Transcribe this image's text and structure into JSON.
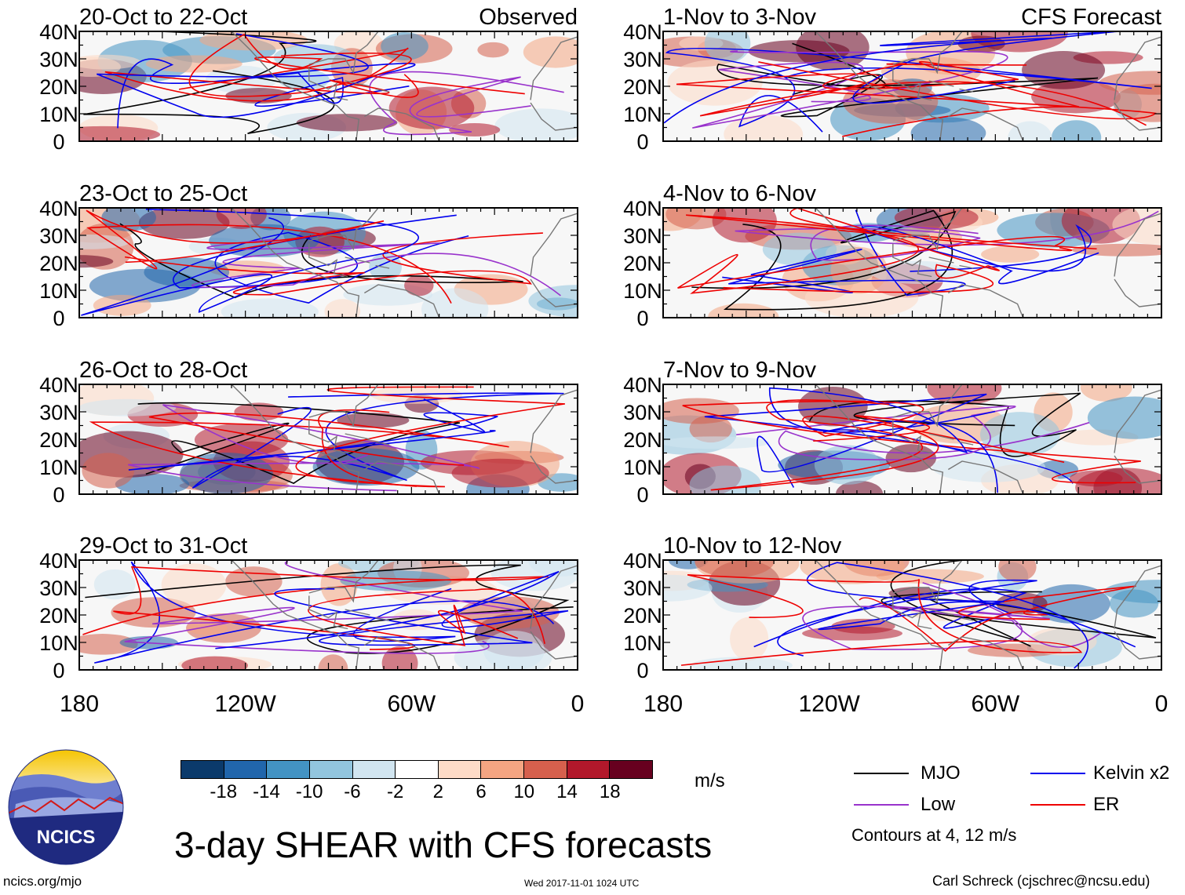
{
  "panels": {
    "left": [
      {
        "label": "20-Oct to 22-Oct",
        "corner": "Observed"
      },
      {
        "label": "23-Oct to 25-Oct",
        "corner": ""
      },
      {
        "label": "26-Oct to 28-Oct",
        "corner": ""
      },
      {
        "label": "29-Oct to 31-Oct",
        "corner": ""
      }
    ],
    "right": [
      {
        "label": "1-Nov to 3-Nov",
        "corner": "CFS Forecast"
      },
      {
        "label": "4-Nov to 6-Nov",
        "corner": ""
      },
      {
        "label": "7-Nov to 9-Nov",
        "corner": ""
      },
      {
        "label": "10-Nov to 12-Nov",
        "corner": ""
      }
    ]
  },
  "axes": {
    "lat_labels": [
      "40N",
      "30N",
      "20N",
      "10N",
      "0"
    ],
    "lon_labels": [
      "180",
      "120W",
      "60W",
      "0"
    ]
  },
  "colorbar": {
    "colors": [
      "#0b3a6b",
      "#2166ac",
      "#4393c3",
      "#92c5de",
      "#d1e5f0",
      "#ffffff",
      "#fddbc7",
      "#f4a582",
      "#d6604d",
      "#b2182b",
      "#67001f"
    ],
    "labels": [
      "-18",
      "-14",
      "-10",
      "-6",
      "-2",
      "2",
      "6",
      "10",
      "14",
      "18"
    ],
    "units": "m/s"
  },
  "legend": {
    "items": [
      {
        "name": "MJO",
        "color": "#000000"
      },
      {
        "name": "Kelvin x2",
        "color": "#0000ee"
      },
      {
        "name": "Low",
        "color": "#9933cc"
      },
      {
        "name": "ER",
        "color": "#ee0000"
      }
    ],
    "note": "Contours at 4, 12 m/s"
  },
  "title": "3-day SHEAR with CFS forecasts",
  "logo_text": "NCICS",
  "footer": {
    "left": "ncics.org/mjo",
    "center": "Wed 2017-11-01 1024 UTC",
    "right": "Carl Schreck (cjschrec@ncsu.edu)"
  }
}
